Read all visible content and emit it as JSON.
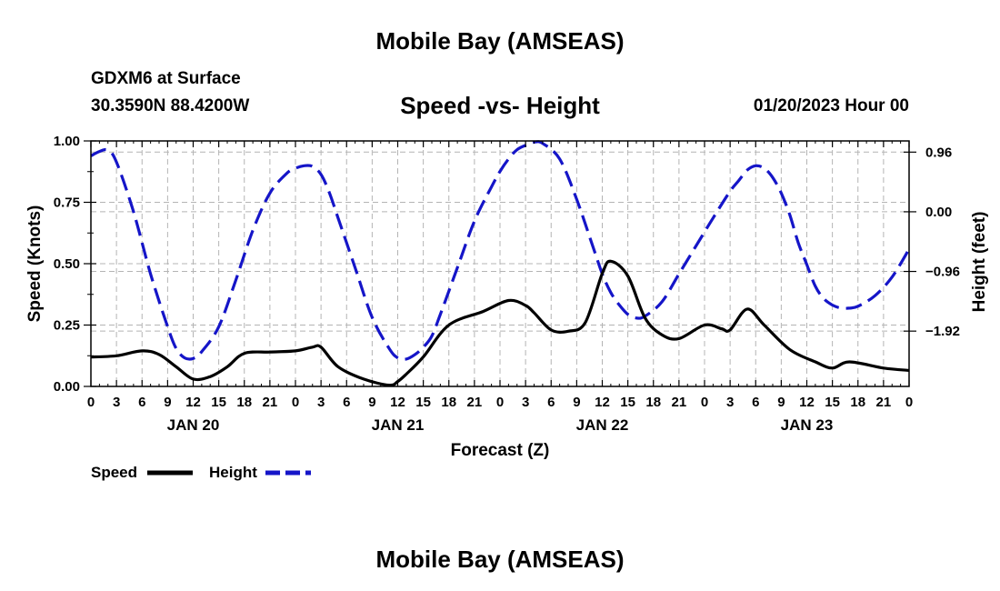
{
  "header": {
    "title": "Mobile Bay (AMSEAS)",
    "station": "GDXM6 at Surface",
    "coords": "30.3590N  88.4200W",
    "subtitle": "Speed -vs- Height",
    "datetime": "01/20/2023 Hour 00"
  },
  "footer": {
    "title": "Mobile Bay (AMSEAS)"
  },
  "colors": {
    "speed": "#000000",
    "height": "#1515c8",
    "grid": "#b4b4b4"
  },
  "chart_data": {
    "type": "line",
    "title": "Speed -vs- Height",
    "xlabel": "Forecast (Z)",
    "ylabel": "Speed (Knots)",
    "y2label": "Height (feet)",
    "xlim": [
      0,
      96
    ],
    "ylim": [
      0,
      1.0
    ],
    "y2lim": [
      -2.81,
      1.14
    ],
    "x_tick_step": 3,
    "x_tick_labels": [
      "0",
      "3",
      "6",
      "9",
      "12",
      "15",
      "18",
      "21",
      "0",
      "3",
      "6",
      "9",
      "12",
      "15",
      "18",
      "21",
      "0",
      "3",
      "6",
      "9",
      "12",
      "15",
      "18",
      "21",
      "0",
      "3",
      "6",
      "9",
      "12",
      "15",
      "18",
      "21",
      "0"
    ],
    "day_labels": [
      {
        "hour": 12,
        "label": "JAN 20"
      },
      {
        "hour": 36,
        "label": "JAN 21"
      },
      {
        "hour": 60,
        "label": "JAN 22"
      },
      {
        "hour": 84,
        "label": "JAN 23"
      }
    ],
    "y_ticks": [
      0,
      0.25,
      0.5,
      0.75,
      1.0
    ],
    "y_tick_labels": [
      "0.00",
      "0.25",
      "0.50",
      "0.75",
      "1.00"
    ],
    "y2_ticks": [
      0.96,
      0.0,
      -0.96,
      -1.92
    ],
    "y2_tick_labels": [
      "0.96",
      "0.00",
      "−0.96",
      "−1.92"
    ],
    "legend": {
      "placement": "bottom-left",
      "speed_label": "Speed",
      "height_label": "Height"
    },
    "series": [
      {
        "name": "Speed",
        "axis": "left",
        "style": "solid",
        "x": [
          0,
          3,
          6,
          8,
          10,
          12,
          14,
          16,
          18,
          21,
          24,
          26,
          27,
          29,
          32,
          35,
          36,
          37,
          39,
          42,
          46,
          49,
          51,
          52,
          54,
          56,
          58,
          60,
          61,
          63,
          65,
          67,
          69,
          72,
          74,
          75,
          77,
          79,
          82,
          85,
          87,
          89,
          93,
          96
        ],
        "y": [
          0.12,
          0.125,
          0.145,
          0.13,
          0.08,
          0.03,
          0.04,
          0.08,
          0.135,
          0.14,
          0.145,
          0.16,
          0.16,
          0.08,
          0.03,
          0.005,
          0.02,
          0.05,
          0.12,
          0.25,
          0.305,
          0.35,
          0.33,
          0.3,
          0.23,
          0.225,
          0.26,
          0.46,
          0.51,
          0.45,
          0.28,
          0.21,
          0.195,
          0.25,
          0.235,
          0.23,
          0.315,
          0.25,
          0.15,
          0.1,
          0.075,
          0.1,
          0.075,
          0.065
        ]
      },
      {
        "name": "Height",
        "axis": "right",
        "style": "dashed",
        "x": [
          0,
          1,
          2,
          3,
          5,
          7,
          9,
          10,
          11,
          12,
          13,
          15,
          17,
          19,
          21,
          23,
          24,
          25,
          26,
          27,
          28,
          29,
          31,
          33,
          35,
          36,
          37,
          38,
          39,
          40,
          41,
          43,
          45,
          47,
          48,
          49,
          50,
          51,
          52,
          53,
          55,
          57,
          59,
          60,
          61,
          62,
          63,
          64,
          65,
          67,
          69,
          71,
          73,
          75,
          76,
          77,
          78,
          79,
          80,
          81,
          82,
          83,
          84,
          85,
          86,
          87,
          88,
          89,
          90,
          92,
          94,
          96
        ],
        "y": [
          0.9,
          0.97,
          0.99,
          0.8,
          0.0,
          -1.0,
          -1.85,
          -2.2,
          -2.35,
          -2.36,
          -2.25,
          -1.85,
          -1.1,
          -0.3,
          0.3,
          0.62,
          0.7,
          0.74,
          0.73,
          0.6,
          0.3,
          -0.1,
          -0.9,
          -1.7,
          -2.2,
          -2.35,
          -2.37,
          -2.3,
          -2.18,
          -2.0,
          -1.65,
          -0.9,
          -0.15,
          0.4,
          0.65,
          0.85,
          1.0,
          1.07,
          1.12,
          1.1,
          0.85,
          0.2,
          -0.6,
          -1.0,
          -1.3,
          -1.5,
          -1.65,
          -1.71,
          -1.68,
          -1.45,
          -1.0,
          -0.55,
          -0.1,
          0.33,
          0.5,
          0.67,
          0.74,
          0.7,
          0.55,
          0.3,
          -0.05,
          -0.5,
          -0.85,
          -1.2,
          -1.4,
          -1.5,
          -1.55,
          -1.55,
          -1.52,
          -1.35,
          -1.05,
          -0.6
        ]
      }
    ]
  }
}
